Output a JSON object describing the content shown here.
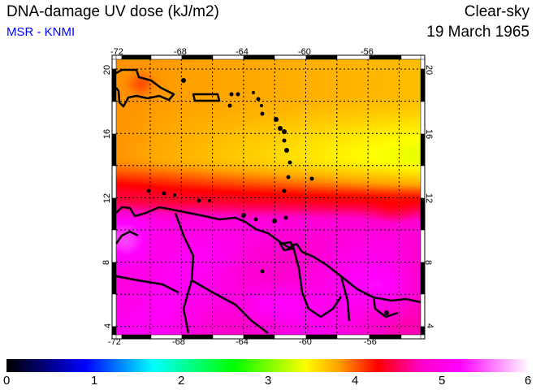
{
  "header": {
    "title": "DNA-damage UV dose (kJ/m2)",
    "source": "MSR - KNMI",
    "condition": "Clear-sky",
    "date": "19 March 1965"
  },
  "map": {
    "region": "Caribbean / northern South America",
    "lon_ticks": [
      "-72",
      "-68",
      "-64",
      "-60",
      "-56"
    ],
    "lat_ticks": [
      "20",
      "16",
      "12",
      "8",
      "4"
    ],
    "lon_range": [
      -72.2,
      -52.6
    ],
    "lat_range": [
      3.5,
      20.7
    ]
  },
  "colorbar": {
    "labels": [
      "0",
      "1",
      "2",
      "3",
      "4",
      "5",
      "6"
    ],
    "range": [
      0,
      6
    ],
    "stops": [
      {
        "v": 0,
        "c": "#000000"
      },
      {
        "v": 0.9,
        "c": "#0000ff"
      },
      {
        "v": 1.68,
        "c": "#00ffff"
      },
      {
        "v": 2.6,
        "c": "#00ff00"
      },
      {
        "v": 3.43,
        "c": "#ffff00"
      },
      {
        "v": 3.8,
        "c": "#ffa500"
      },
      {
        "v": 4.26,
        "c": "#ff0000"
      },
      {
        "v": 4.77,
        "c": "#ff00cc"
      },
      {
        "v": 5.2,
        "c": "#ff00ff"
      },
      {
        "v": 6,
        "c": "#ffffff"
      }
    ]
  }
}
